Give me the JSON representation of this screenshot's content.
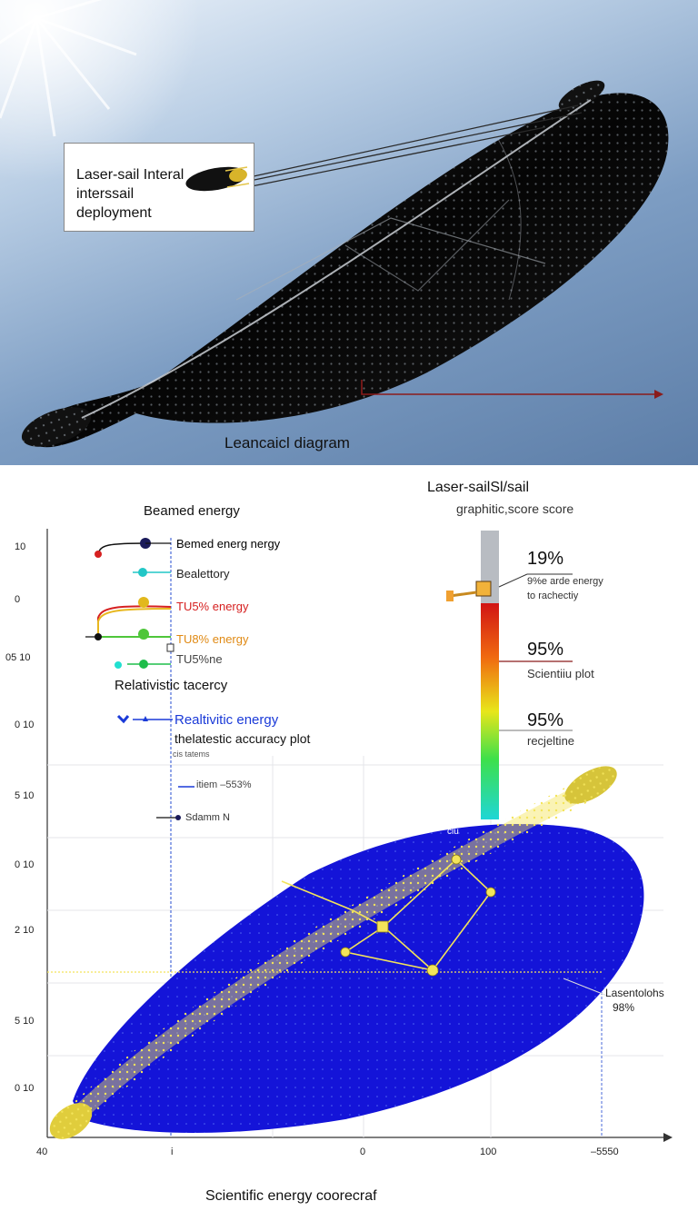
{
  "top": {
    "callout_lines": [
      "Laser-sail Interal",
      "interssail",
      "deployment"
    ],
    "caption": "Leancaicl diagram"
  },
  "bottom": {
    "header_line1": "Laser-sailSl/sail",
    "header_line2": "graphitic,score score",
    "legend_title": "Beamed energy",
    "legend": [
      {
        "label": "Bemed energ nergy",
        "color": "#111111",
        "dot": "#1a1a5a"
      },
      {
        "label": "Bealettory",
        "color": "#111111",
        "dot": "#22c7c7"
      },
      {
        "label": "TU5% energy",
        "color": "#d62020",
        "dot": "#e2b81c"
      },
      {
        "label": "TU8% energy",
        "color": "#e08a14",
        "dot": "#4fc63a"
      },
      {
        "label": "TU5%ne",
        "color": "#111111",
        "dot": "#1fbd4a"
      }
    ],
    "rel_accuracy": "Relativistic tacercy",
    "rel_energy": "Realtivitic energy",
    "rel_plot": "thelatestic accuracy plot",
    "rel_small": "cis tatems",
    "blue_line_label": "itiem –553%",
    "small_marker_label": "Sdamm N",
    "y_ticks": [
      "10",
      "0",
      "05 10",
      "0 10",
      "5 10",
      "0 10",
      "2 10",
      "5 10",
      "0 10"
    ],
    "x_ticks": [
      "40",
      "i",
      "0",
      "100",
      "–5550"
    ],
    "bar_annotations": [
      {
        "value": "19%",
        "text1": "9%e arde energy",
        "text2": "to rachectiy"
      },
      {
        "value": "95%",
        "text1": "Scientiiu plot",
        "text2": ""
      },
      {
        "value": "95%",
        "text1": "recjeltine",
        "text2": ""
      }
    ],
    "sail_top_label": "ciu",
    "side_label1": "Lasentolohs",
    "side_label2": "98%",
    "caption": "Scientific energy coorecraf"
  },
  "colors": {
    "sail_dark": "#0a0a0a",
    "sail_blue": "#1414d8",
    "accent_red": "#8a1b1b",
    "mesh_yellow": "#f3e45a"
  }
}
